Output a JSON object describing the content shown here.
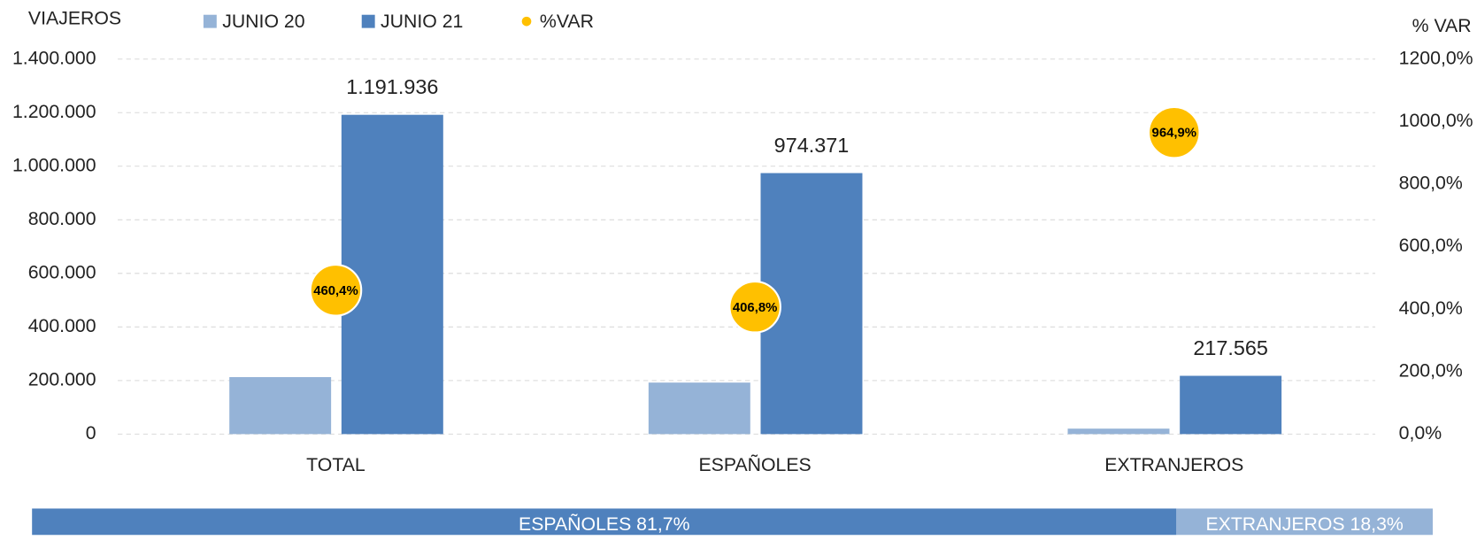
{
  "chart_data": {
    "type": "bar",
    "y_label": "VIAJEROS",
    "y2_label": "% VAR",
    "categories": [
      "TOTAL",
      "ESPAÑOLES",
      "EXTRANJEROS"
    ],
    "series": [
      {
        "name": "JUNIO 20",
        "color": "#95b3d7",
        "values": [
          212700,
          192300,
          20400
        ]
      },
      {
        "name": "JUNIO 21",
        "color": "#4f81bd",
        "values": [
          1191936,
          974371,
          217565
        ],
        "value_labels": [
          "1.191.936",
          "974.371",
          "217.565"
        ]
      },
      {
        "name": "%VAR",
        "type": "scatter",
        "axis": "y2",
        "color": "#ffc000",
        "values": [
          460.4,
          406.8,
          964.9
        ],
        "value_labels": [
          "460,4%",
          "406,8%",
          "964,9%"
        ]
      }
    ],
    "ylim": [
      0,
      1400000
    ],
    "yticks": [
      0,
      {
        "value": 200000,
        "label": "200.000"
      },
      {
        "value": 400000,
        "label": "400.000"
      },
      {
        "value": 600000,
        "label": "600.000"
      },
      {
        "value": 800000,
        "label": "800.000"
      },
      {
        "value": 1000000,
        "label": "1.000.000"
      },
      {
        "value": 1200000,
        "label": "1.200.000"
      },
      {
        "value": 1400000,
        "label": "1.400.000"
      }
    ],
    "y2lim": [
      0,
      1200
    ],
    "y2ticks": [
      {
        "value": 0,
        "label": "0,0%"
      },
      {
        "value": 200,
        "label": "200,0%"
      },
      {
        "value": 400,
        "label": "400,0%"
      },
      {
        "value": 600,
        "label": "600,0%"
      },
      {
        "value": 800,
        "label": "800,0%"
      },
      {
        "value": 1000,
        "label": "1000,0%"
      },
      {
        "value": 1200,
        "label": "1200,0%"
      }
    ],
    "grid": true,
    "legend": "top"
  },
  "share_bar": {
    "segments": [
      {
        "label": "ESPAÑOLES 81,7%",
        "value": 81.7,
        "color": "#4f81bd"
      },
      {
        "label": "EXTRANJEROS 18,3%",
        "value": 18.3,
        "color": "#95b3d7"
      }
    ]
  }
}
